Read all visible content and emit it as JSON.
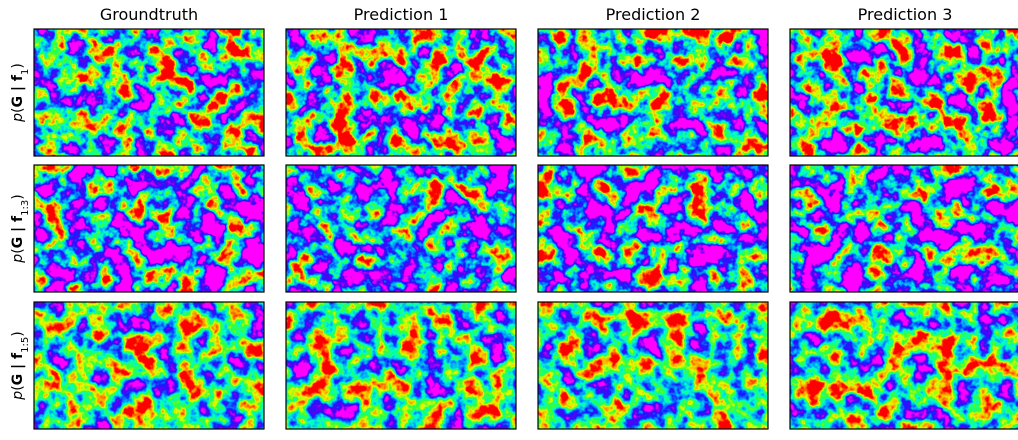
{
  "columns": [
    "Groundtruth",
    "Prediction 1",
    "Prediction 2",
    "Prediction 3"
  ],
  "rows": [
    {
      "label_parts": [
        "p",
        "(",
        "G | f",
        "1",
        ")"
      ]
    },
    {
      "label_parts": [
        "p",
        "(",
        "G | f",
        "1:3",
        ")"
      ]
    },
    {
      "label_parts": [
        "p",
        "(",
        "G | f",
        "1:5",
        ")"
      ]
    }
  ]
}
